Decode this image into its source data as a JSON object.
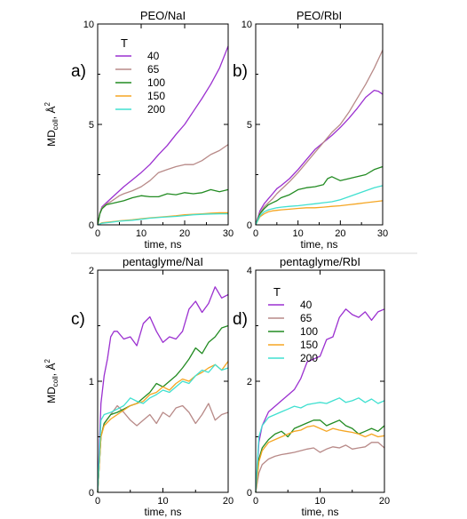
{
  "figure": {
    "divider_color": "#d8d8d8",
    "colors": {
      "40": "#9b30d0",
      "65": "#b88a88",
      "100": "#228b22",
      "150": "#f5a623",
      "200": "#40e0d0"
    }
  },
  "chart_data": [
    {
      "type": "line",
      "panel_label": "a)",
      "title": "PEO/NaI",
      "xlabel": "time, ns",
      "ylabel": "MD",
      "ylabel_sub": "coll",
      "ylabel_suffix": ", Å",
      "ylabel_sup": "2",
      "xlim": [
        0,
        30
      ],
      "ylim": [
        0,
        10
      ],
      "xticks": [
        0,
        10,
        20,
        30
      ],
      "yticks": [
        0,
        5,
        10
      ],
      "legend_title": "T",
      "legend_position": "top-left",
      "series": [
        {
          "name": "40",
          "color": "#9b30d0",
          "x": [
            0,
            0.5,
            1,
            2,
            3,
            4,
            5,
            6,
            8,
            10,
            12,
            14,
            16,
            18,
            20,
            22,
            24,
            26,
            28,
            30
          ],
          "y": [
            0,
            0.6,
            0.9,
            1.1,
            1.3,
            1.5,
            1.7,
            1.9,
            2.25,
            2.6,
            3.0,
            3.5,
            3.95,
            4.5,
            5.0,
            5.65,
            6.3,
            7.0,
            7.8,
            8.9
          ]
        },
        {
          "name": "65",
          "color": "#b88a88",
          "x": [
            0,
            0.5,
            1,
            2,
            3,
            4,
            5,
            6,
            8,
            10,
            12,
            14,
            16,
            18,
            20,
            22,
            24,
            26,
            28,
            30
          ],
          "y": [
            0,
            0.6,
            0.85,
            1.05,
            1.15,
            1.3,
            1.45,
            1.55,
            1.7,
            1.9,
            2.2,
            2.6,
            2.75,
            2.9,
            3.0,
            3.0,
            3.2,
            3.5,
            3.7,
            4.0
          ]
        },
        {
          "name": "100",
          "color": "#228b22",
          "x": [
            0,
            0.5,
            1,
            2,
            3,
            4,
            5,
            6,
            8,
            10,
            12,
            14,
            16,
            18,
            20,
            22,
            24,
            26,
            28,
            30
          ],
          "y": [
            0,
            0.55,
            0.8,
            1.0,
            1.05,
            1.1,
            1.15,
            1.2,
            1.35,
            1.45,
            1.4,
            1.4,
            1.55,
            1.5,
            1.6,
            1.55,
            1.6,
            1.75,
            1.65,
            1.75
          ]
        },
        {
          "name": "150",
          "color": "#f5a623",
          "x": [
            0,
            1,
            3,
            5,
            8,
            10,
            12,
            15,
            18,
            20,
            22,
            24,
            26,
            28,
            30
          ],
          "y": [
            0,
            0.1,
            0.15,
            0.2,
            0.25,
            0.3,
            0.35,
            0.4,
            0.45,
            0.5,
            0.52,
            0.55,
            0.58,
            0.6,
            0.6
          ]
        },
        {
          "name": "200",
          "color": "#40e0d0",
          "x": [
            0,
            1,
            3,
            5,
            8,
            10,
            12,
            15,
            18,
            20,
            22,
            24,
            26,
            28,
            30
          ],
          "y": [
            0,
            0.08,
            0.13,
            0.18,
            0.23,
            0.28,
            0.33,
            0.38,
            0.42,
            0.46,
            0.5,
            0.52,
            0.54,
            0.55,
            0.55
          ]
        }
      ]
    },
    {
      "type": "line",
      "panel_label": "b)",
      "title": "PEO/RbI",
      "xlabel": "time, ns",
      "ylabel": "",
      "xlim": [
        0,
        30
      ],
      "ylim": [
        0,
        10
      ],
      "xticks": [
        0,
        10,
        20,
        30
      ],
      "yticks": [
        0,
        5,
        10
      ],
      "series": [
        {
          "name": "40",
          "color": "#9b30d0",
          "x": [
            0,
            1,
            2,
            3,
            4,
            5,
            6,
            8,
            10,
            12,
            14,
            16,
            18,
            20,
            22,
            24,
            26,
            28,
            29,
            30
          ],
          "y": [
            0,
            0.7,
            1.05,
            1.3,
            1.55,
            1.8,
            1.95,
            2.3,
            2.75,
            3.25,
            3.75,
            4.1,
            4.45,
            4.85,
            5.3,
            5.8,
            6.35,
            6.7,
            6.65,
            6.5
          ]
        },
        {
          "name": "65",
          "color": "#b88a88",
          "x": [
            0,
            1,
            2,
            3,
            4,
            5,
            6,
            8,
            10,
            12,
            14,
            16,
            18,
            20,
            22,
            24,
            26,
            28,
            30
          ],
          "y": [
            0,
            0.6,
            0.9,
            1.1,
            1.3,
            1.55,
            1.75,
            2.15,
            2.6,
            3.1,
            3.6,
            4.1,
            4.6,
            5.0,
            5.6,
            6.3,
            7.0,
            7.8,
            8.7
          ]
        },
        {
          "name": "100",
          "color": "#228b22",
          "x": [
            0,
            1,
            2,
            3,
            4,
            5,
            6,
            8,
            10,
            12,
            14,
            16,
            17,
            18,
            20,
            22,
            24,
            26,
            28,
            30
          ],
          "y": [
            0,
            0.55,
            0.8,
            1.0,
            1.1,
            1.2,
            1.35,
            1.5,
            1.75,
            1.85,
            1.9,
            2.0,
            2.3,
            2.4,
            2.2,
            2.3,
            2.4,
            2.5,
            2.75,
            2.9
          ]
        },
        {
          "name": "150",
          "color": "#f5a623",
          "x": [
            0,
            1,
            2,
            3,
            4,
            5,
            6,
            8,
            10,
            12,
            14,
            16,
            18,
            20,
            22,
            24,
            26,
            28,
            30
          ],
          "y": [
            0,
            0.4,
            0.55,
            0.65,
            0.7,
            0.72,
            0.75,
            0.78,
            0.82,
            0.85,
            0.85,
            0.88,
            0.92,
            0.95,
            1.0,
            1.05,
            1.1,
            1.15,
            1.2
          ]
        },
        {
          "name": "200",
          "color": "#40e0d0",
          "x": [
            0,
            1,
            2,
            3,
            4,
            5,
            6,
            8,
            10,
            12,
            14,
            16,
            18,
            20,
            22,
            24,
            26,
            28,
            30
          ],
          "y": [
            0,
            0.45,
            0.65,
            0.75,
            0.8,
            0.85,
            0.88,
            0.92,
            0.95,
            1.0,
            1.05,
            1.1,
            1.15,
            1.25,
            1.4,
            1.55,
            1.7,
            1.85,
            1.95
          ]
        }
      ]
    },
    {
      "type": "line",
      "panel_label": "c)",
      "title": "pentaglyme/NaI",
      "xlabel": "time, ns",
      "ylabel": "MD",
      "ylabel_sub": "coll",
      "ylabel_suffix": ", Å",
      "ylabel_sup": "2",
      "xlim": [
        0,
        20
      ],
      "ylim": [
        0,
        2
      ],
      "xticks": [
        0,
        10,
        20
      ],
      "yticks": [
        0,
        1,
        2
      ],
      "series": [
        {
          "name": "40",
          "color": "#9b30d0",
          "x": [
            0,
            0.5,
            1,
            1.5,
            2,
            2.5,
            3,
            4,
            5,
            6,
            7,
            8,
            9,
            10,
            11,
            12,
            13,
            14,
            15,
            16,
            17,
            18,
            19,
            20
          ],
          "y": [
            0,
            0.8,
            1.05,
            1.2,
            1.4,
            1.45,
            1.45,
            1.38,
            1.4,
            1.32,
            1.52,
            1.58,
            1.45,
            1.35,
            1.4,
            1.38,
            1.45,
            1.65,
            1.72,
            1.62,
            1.7,
            1.85,
            1.75,
            1.78
          ]
        },
        {
          "name": "65",
          "color": "#b88a88",
          "x": [
            0,
            0.5,
            1,
            2,
            3,
            4,
            5,
            6,
            7,
            8,
            9,
            10,
            11,
            12,
            13,
            14,
            15,
            16,
            17,
            18,
            19,
            20
          ],
          "y": [
            0,
            0.5,
            0.62,
            0.7,
            0.78,
            0.72,
            0.65,
            0.6,
            0.65,
            0.7,
            0.62,
            0.72,
            0.68,
            0.76,
            0.78,
            0.72,
            0.62,
            0.7,
            0.8,
            0.65,
            0.7,
            0.72
          ]
        },
        {
          "name": "100",
          "color": "#228b22",
          "x": [
            0,
            0.5,
            1,
            2,
            3,
            4,
            5,
            6,
            7,
            8,
            9,
            10,
            11,
            12,
            13,
            14,
            15,
            16,
            17,
            18,
            19,
            20
          ],
          "y": [
            0,
            0.5,
            0.62,
            0.7,
            0.72,
            0.75,
            0.78,
            0.8,
            0.85,
            0.9,
            0.98,
            0.95,
            1.0,
            1.05,
            1.12,
            1.2,
            1.3,
            1.25,
            1.35,
            1.4,
            1.48,
            1.5
          ]
        },
        {
          "name": "150",
          "color": "#f5a623",
          "x": [
            0,
            0.5,
            1,
            2,
            3,
            4,
            5,
            6,
            7,
            8,
            9,
            10,
            11,
            12,
            13,
            14,
            15,
            16,
            17,
            18,
            19,
            20
          ],
          "y": [
            0,
            0.5,
            0.6,
            0.66,
            0.7,
            0.74,
            0.78,
            0.8,
            0.82,
            0.88,
            0.9,
            0.95,
            0.92,
            0.98,
            1.02,
            1.0,
            1.05,
            1.08,
            1.12,
            1.15,
            1.1,
            1.18
          ]
        },
        {
          "name": "200",
          "color": "#40e0d0",
          "x": [
            0,
            0.5,
            1,
            2,
            3,
            4,
            5,
            6,
            7,
            8,
            9,
            10,
            11,
            12,
            13,
            14,
            15,
            16,
            17,
            18,
            19,
            20
          ],
          "y": [
            0,
            0.65,
            0.7,
            0.72,
            0.75,
            0.78,
            0.85,
            0.82,
            0.8,
            0.85,
            0.88,
            0.92,
            0.9,
            0.95,
            1.0,
            0.98,
            1.05,
            1.1,
            1.08,
            1.15,
            1.1,
            1.12
          ]
        }
      ]
    },
    {
      "type": "line",
      "panel_label": "d)",
      "title": "pentaglyme/RbI",
      "xlabel": "time, ns",
      "ylabel": "",
      "xlim": [
        0,
        20
      ],
      "ylim": [
        0,
        4
      ],
      "xticks": [
        0,
        10,
        20
      ],
      "yticks": [
        0,
        2,
        4
      ],
      "legend_title": "T",
      "legend_position": "top-left",
      "series": [
        {
          "name": "40",
          "color": "#9b30d0",
          "x": [
            0,
            0.5,
            1,
            2,
            3,
            4,
            5,
            6,
            7,
            8,
            9,
            10,
            11,
            12,
            13,
            14,
            15,
            16,
            17,
            18,
            19,
            20
          ],
          "y": [
            0,
            0.9,
            1.2,
            1.45,
            1.55,
            1.65,
            1.75,
            1.85,
            2.05,
            2.35,
            2.4,
            2.45,
            2.75,
            2.8,
            3.15,
            3.3,
            3.2,
            3.15,
            3.25,
            3.1,
            3.25,
            3.3
          ]
        },
        {
          "name": "65",
          "color": "#b88a88",
          "x": [
            0,
            0.5,
            1,
            2,
            3,
            4,
            5,
            6,
            7,
            8,
            9,
            10,
            11,
            12,
            13,
            14,
            15,
            16,
            17,
            18,
            19,
            20
          ],
          "y": [
            0,
            0.35,
            0.5,
            0.6,
            0.65,
            0.68,
            0.7,
            0.72,
            0.75,
            0.78,
            0.8,
            0.72,
            0.78,
            0.82,
            0.8,
            0.85,
            0.78,
            0.8,
            0.82,
            0.9,
            0.9,
            0.8
          ]
        },
        {
          "name": "100",
          "color": "#228b22",
          "x": [
            0,
            0.5,
            1,
            2,
            3,
            4,
            5,
            6,
            7,
            8,
            9,
            10,
            11,
            12,
            13,
            14,
            15,
            16,
            17,
            18,
            19,
            20
          ],
          "y": [
            0,
            0.6,
            0.8,
            0.95,
            1.05,
            1.1,
            1.0,
            1.15,
            1.2,
            1.25,
            1.3,
            1.3,
            1.2,
            1.25,
            1.3,
            1.2,
            1.15,
            1.05,
            1.1,
            1.15,
            1.1,
            1.2
          ]
        },
        {
          "name": "150",
          "color": "#f5a623",
          "x": [
            0,
            0.5,
            1,
            2,
            3,
            4,
            5,
            6,
            7,
            8,
            9,
            10,
            11,
            12,
            13,
            14,
            15,
            16,
            17,
            18,
            19,
            20
          ],
          "y": [
            0,
            0.55,
            0.75,
            0.9,
            0.95,
            1.0,
            1.05,
            1.1,
            1.12,
            1.18,
            1.2,
            1.15,
            1.1,
            1.15,
            1.12,
            1.1,
            1.08,
            1.05,
            1.0,
            1.05,
            1.0,
            1.02
          ]
        },
        {
          "name": "200",
          "color": "#40e0d0",
          "x": [
            0,
            0.5,
            1,
            2,
            3,
            4,
            5,
            6,
            7,
            8,
            9,
            10,
            11,
            12,
            13,
            14,
            15,
            16,
            17,
            18,
            19,
            20
          ],
          "y": [
            0,
            1.0,
            1.2,
            1.35,
            1.4,
            1.45,
            1.5,
            1.55,
            1.52,
            1.58,
            1.6,
            1.62,
            1.6,
            1.65,
            1.7,
            1.62,
            1.65,
            1.7,
            1.62,
            1.68,
            1.6,
            1.65
          ]
        }
      ]
    }
  ]
}
